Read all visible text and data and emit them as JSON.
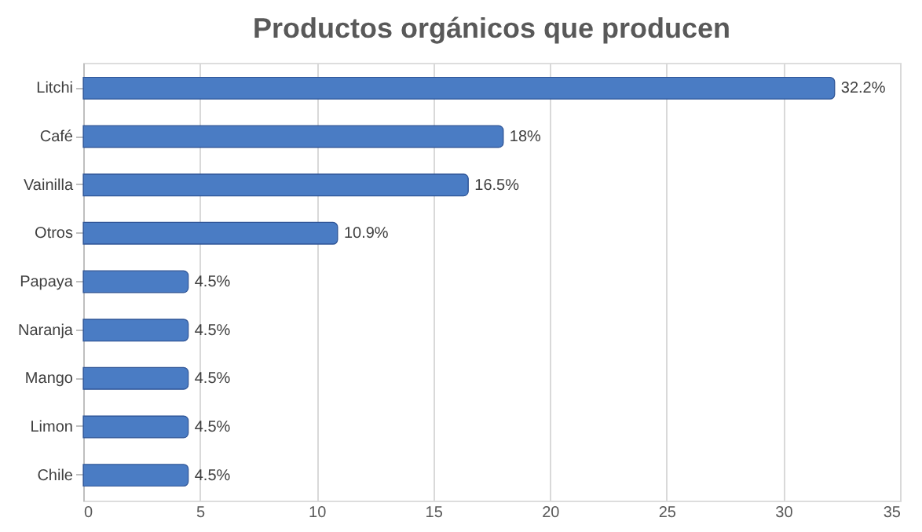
{
  "chart_data": {
    "type": "bar",
    "orientation": "horizontal",
    "title": "Productos  orgánicos  que  producen",
    "categories": [
      "Litchi",
      "Café",
      "Vainilla",
      "Otros",
      "Papaya",
      "Naranja",
      "Mango",
      "Limon",
      "Chile"
    ],
    "values": [
      32.2,
      18,
      16.5,
      10.9,
      4.5,
      4.5,
      4.5,
      4.5,
      4.5
    ],
    "value_labels": [
      "32.2%",
      "18%",
      "16.5%",
      "10.9%",
      "4.5%",
      "4.5%",
      "4.5%",
      "4.5%",
      "4.5%"
    ],
    "color": "#4a7cc4",
    "xlim": [
      0,
      35
    ],
    "xticks": [
      0,
      5,
      10,
      15,
      20,
      25,
      30,
      35
    ],
    "grid": "x"
  }
}
